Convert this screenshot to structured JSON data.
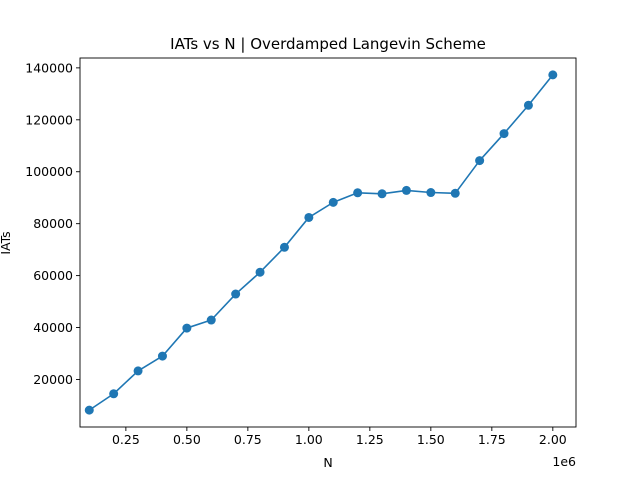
{
  "chart_data": {
    "type": "line",
    "title": "IATs vs N | Overdamped Langevin Scheme",
    "xlabel": "N",
    "ylabel": "IATs",
    "x_offset_label": "1e6",
    "xlim": [
      0.062,
      2.095
    ],
    "ylim": [
      1700,
      143800
    ],
    "x_ticks": [
      0.25,
      0.5,
      0.75,
      1.0,
      1.25,
      1.5,
      1.75,
      2.0
    ],
    "x_tick_labels": [
      "0.25",
      "0.50",
      "0.75",
      "1.00",
      "1.25",
      "1.50",
      "1.75",
      "2.00"
    ],
    "y_ticks": [
      20000,
      40000,
      60000,
      80000,
      100000,
      120000,
      140000
    ],
    "y_tick_labels": [
      "20000",
      "40000",
      "60000",
      "80000",
      "100000",
      "120000",
      "140000"
    ],
    "grid": false,
    "color": "#1f77b4",
    "marker": "circle",
    "x": [
      0.1,
      0.2,
      0.3,
      0.4,
      0.5,
      0.6,
      0.7,
      0.8,
      0.9,
      1.0,
      1.1,
      1.2,
      1.3,
      1.4,
      1.5,
      1.6,
      1.7,
      1.8,
      1.9,
      2.0
    ],
    "y": [
      8200,
      14500,
      23300,
      29000,
      39800,
      42900,
      52900,
      61300,
      70900,
      82400,
      88200,
      91900,
      91500,
      92800,
      92000,
      91700,
      104300,
      114700,
      125600,
      137300
    ]
  }
}
